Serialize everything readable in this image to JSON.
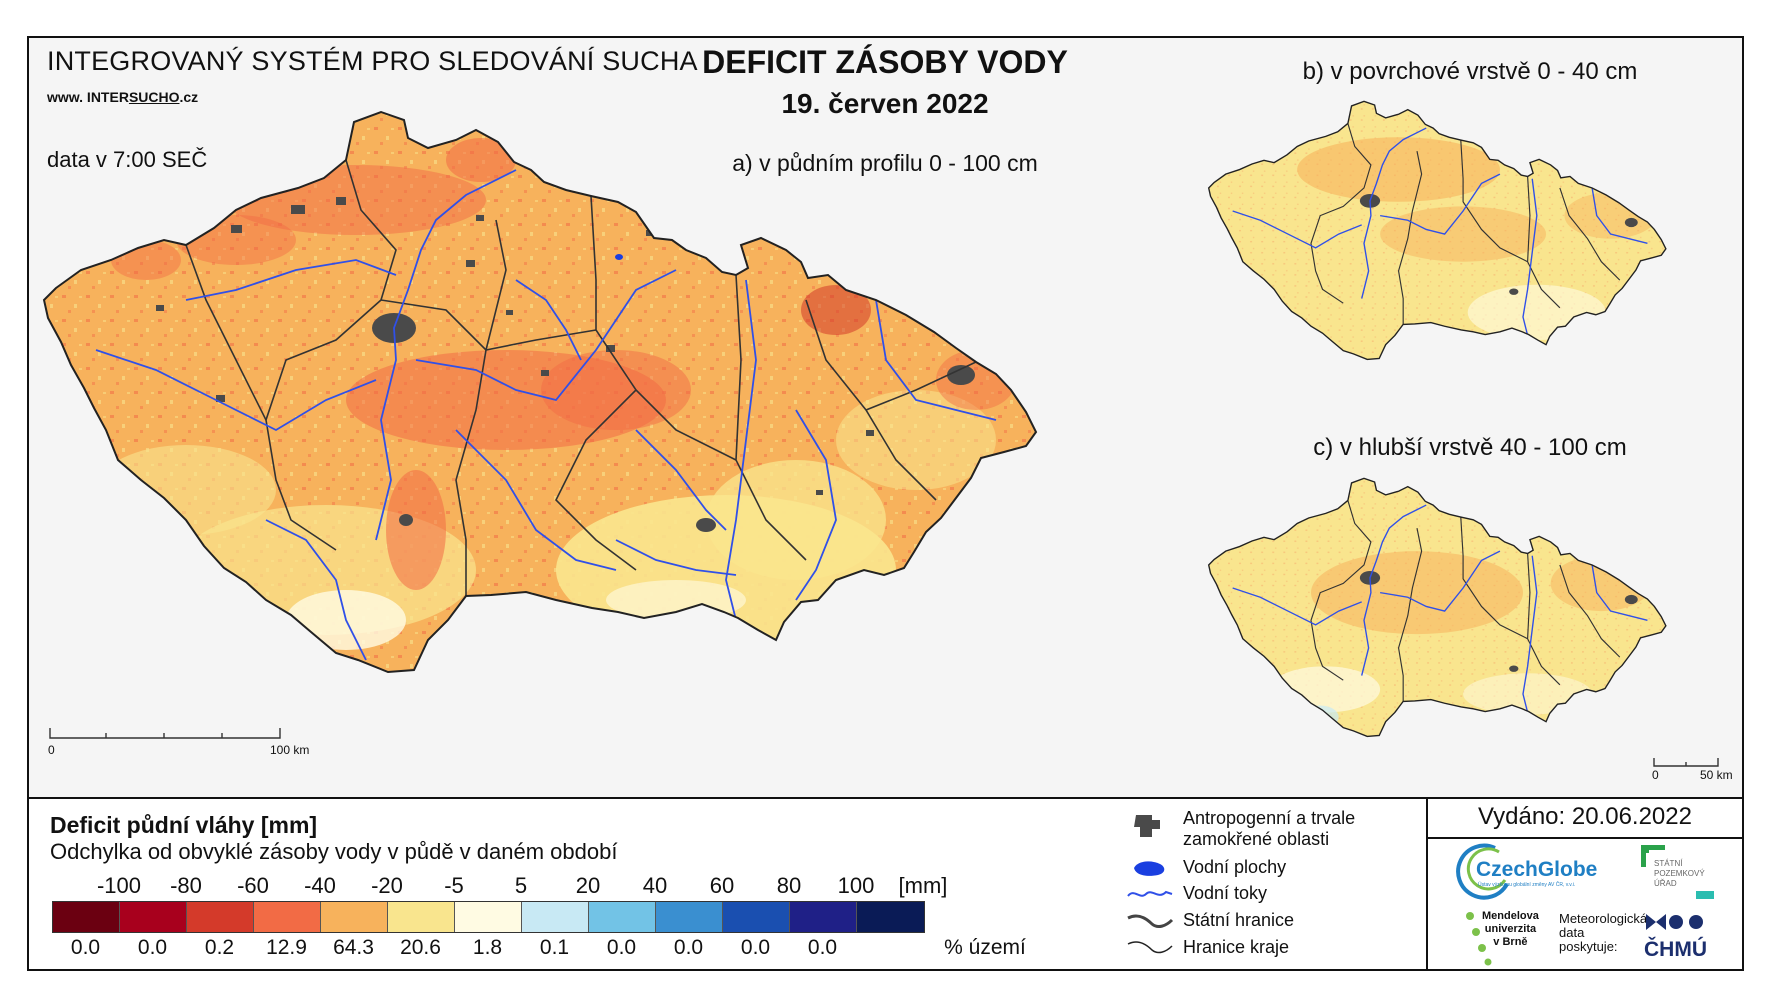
{
  "header": {
    "system_title": "INTEGROVANÝ SYSTÉM PRO SLEDOVÁNÍ SUCHA",
    "website_prefix": "www. INTER",
    "website_underlined": "SUCHO",
    "website_suffix": ".cz",
    "data_time": "data v 7:00 SEČ"
  },
  "title": {
    "main": "DEFICIT ZÁSOBY VODY",
    "date": "19. červen 2022"
  },
  "maps": {
    "a_label": "a) v půdním profilu 0 - 100 cm",
    "b_label": "b) v povrchové vrstvě 0 - 40 cm",
    "c_label": "c) v hlubší vrstvě 40 - 100 cm",
    "scale_main_start": "0",
    "scale_main_end": "100 km",
    "scale_small_start": "0",
    "scale_small_end": "50 km"
  },
  "legend": {
    "title": "Deficit půdní vláhy  [mm]",
    "subtitle": "Odchylka od obvyklé zásoby vody v půdě v daném období",
    "unit": "[mm]",
    "pct_label": "% území",
    "bounds": [
      "-100",
      "-80",
      "-60",
      "-40",
      "-20",
      "-5",
      "5",
      "20",
      "40",
      "60",
      "80",
      "100"
    ],
    "classes": [
      {
        "color": "#6b0011",
        "pct": "0.0"
      },
      {
        "color": "#a8001d",
        "pct": "0.0"
      },
      {
        "color": "#d43a2a",
        "pct": "0.2"
      },
      {
        "color": "#f26b45",
        "pct": "12.9"
      },
      {
        "color": "#f7b25c",
        "pct": "64.3"
      },
      {
        "color": "#f9e58e",
        "pct": "20.6"
      },
      {
        "color": "#fffbe3",
        "pct": "1.8"
      },
      {
        "color": "#c8e9f4",
        "pct": "0.1"
      },
      {
        "color": "#72c3e6",
        "pct": "0.0"
      },
      {
        "color": "#3a8fd0",
        "pct": "0.0"
      },
      {
        "color": "#1a4fb0",
        "pct": "0.0"
      },
      {
        "color": "#1f2087",
        "pct": "0.0"
      },
      {
        "color": "#0a1b56",
        "pct": ""
      }
    ]
  },
  "symbols": {
    "urban": "Antropogenní a trvale",
    "urban2": "zamokřené oblasti",
    "water_bodies": "Vodní plochy",
    "rivers": "Vodní toky",
    "state_border": "Státní hranice",
    "region_border": "Hranice kraje",
    "colors": {
      "urban": "#4a4a4a",
      "water": "#1a3fe0",
      "river": "#3050e8"
    }
  },
  "issued": "Vydáno: 20.06.2022",
  "logos": {
    "czechglobe": "CzechGlobe",
    "czechglobe_sub": "Ústav výzkumu globální změny AV ČR, v.v.i.",
    "spu": "STÁTNÍ POZEMKOVÝ ÚŘAD",
    "mendel1": "Mendelova",
    "mendel2": "univerzita",
    "mendel3": "v Brně",
    "meteo1": "Meteorologická",
    "meteo2": "data",
    "meteo3": "poskytuje:",
    "chmu": "ČHMÚ"
  }
}
